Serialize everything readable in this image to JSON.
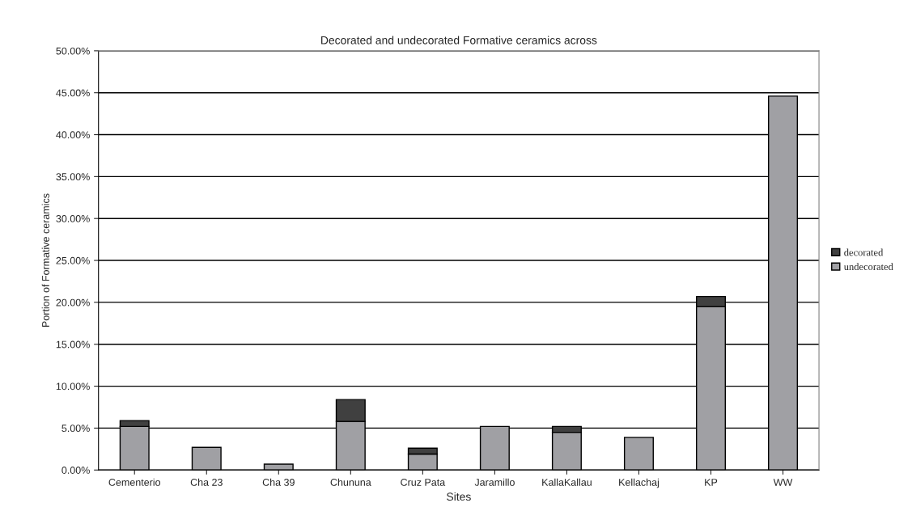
{
  "chart_data": {
    "type": "bar",
    "title": "Decorated and undecorated Formative ceramics across",
    "xlabel": "Sites",
    "ylabel": "Portion of Formative ceramics",
    "categories": [
      "Cementerio",
      "Cha 23",
      "Cha 39",
      "Chununa",
      "Cruz Pata",
      "Jaramillo",
      "KallaKallau",
      "Kellachaj",
      "KP",
      "WW"
    ],
    "stacked": true,
    "series": [
      {
        "name": "undecorated",
        "color": "#a0a0a4",
        "values": [
          5.2,
          2.7,
          0.7,
          5.8,
          1.9,
          5.2,
          4.5,
          3.9,
          19.5,
          44.6
        ]
      },
      {
        "name": "decorated",
        "color": "#404040",
        "values": [
          0.7,
          null,
          null,
          2.6,
          0.7,
          null,
          0.7,
          null,
          1.2,
          null
        ]
      }
    ],
    "ylim": [
      0,
      50
    ],
    "yticks": [
      {
        "value": 0,
        "label": "0.00%"
      },
      {
        "value": 5,
        "label": "5.00%"
      },
      {
        "value": 10,
        "label": "10.00%"
      },
      {
        "value": 15,
        "label": "15.00%"
      },
      {
        "value": 20,
        "label": "20.00%"
      },
      {
        "value": 25,
        "label": "25.00%"
      },
      {
        "value": 30,
        "label": "30.00%"
      },
      {
        "value": 35,
        "label": "35.00%"
      },
      {
        "value": 40,
        "label": "40.00%"
      },
      {
        "value": 45,
        "label": "45.00%"
      },
      {
        "value": 50,
        "label": "50.00%"
      }
    ],
    "grid": "y",
    "legend": "right"
  }
}
